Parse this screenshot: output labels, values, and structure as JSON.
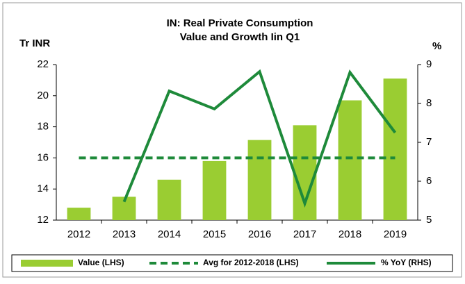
{
  "chart_data": {
    "type": "combo",
    "title": "IN: Real Private Consumption",
    "subtitle": "Value and Growth Iin Q1",
    "ylabel": "Tr INR",
    "y2label": "%",
    "categories": [
      "2012",
      "2013",
      "2014",
      "2015",
      "2016",
      "2017",
      "2018",
      "2019"
    ],
    "ylim": [
      12,
      22
    ],
    "yticks": [
      12,
      14,
      16,
      18,
      20,
      22
    ],
    "y2lim": [
      5,
      9
    ],
    "y2ticks": [
      5,
      6,
      7,
      8,
      9
    ],
    "series": [
      {
        "name": "Value (LHS)",
        "type": "bar",
        "color": "#9acd32",
        "axis": "y",
        "values": [
          12.8,
          13.5,
          14.6,
          15.8,
          17.15,
          18.1,
          19.7,
          21.1
        ]
      },
      {
        "name": "Avg for 2012-2018 (LHS)",
        "type": "line",
        "dashed": true,
        "color": "#1e8a3a",
        "axis": "y",
        "values": [
          16.0,
          16.0,
          16.0,
          16.0,
          16.0,
          16.0,
          16.0,
          16.0
        ]
      },
      {
        "name": "% YoY (RHS)",
        "type": "line",
        "dashed": false,
        "color": "#1e8a3a",
        "axis": "y2",
        "values": [
          null,
          5.47,
          8.32,
          7.86,
          8.82,
          5.43,
          8.8,
          7.25
        ]
      }
    ],
    "legend": "bottom"
  }
}
